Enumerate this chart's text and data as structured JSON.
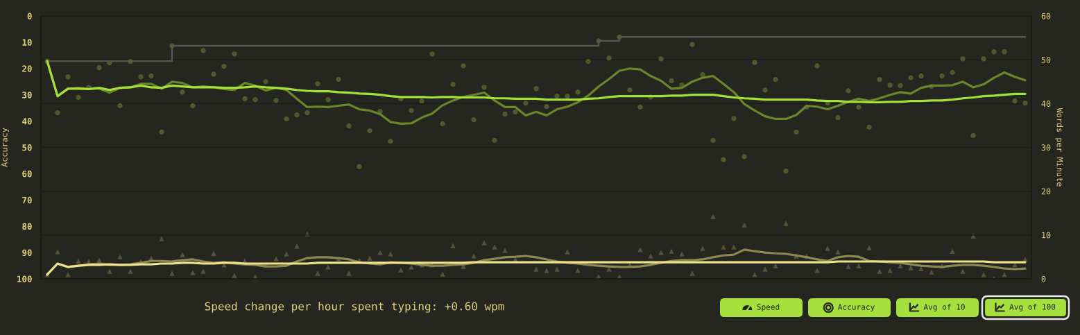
{
  "chart_data": {
    "type": "line",
    "categories": [
      null,
      null,
      null,
      null,
      null,
      null,
      null,
      null,
      null,
      null,
      null,
      null,
      null,
      null,
      null,
      null,
      null,
      null,
      null,
      null,
      null,
      null,
      null,
      null,
      null,
      null,
      null,
      null,
      null,
      null,
      null,
      null,
      null,
      null,
      null,
      null,
      null,
      null,
      null,
      null,
      null,
      null,
      null,
      null,
      null,
      null,
      null,
      null,
      null,
      null,
      null,
      null,
      null,
      null,
      null,
      null,
      null,
      null,
      null,
      null,
      null,
      null,
      null,
      null,
      null,
      null,
      null,
      null,
      null,
      null,
      null,
      null,
      null,
      null,
      null,
      null,
      null,
      null,
      null,
      null,
      null,
      null,
      null,
      null,
      null,
      null,
      null,
      null,
      null,
      null,
      null,
      null,
      null,
      null,
      null
    ],
    "ylabel": "Accuracy",
    "y2label": "Words per Minute",
    "ylim": [
      100,
      0
    ],
    "yticks": [
      0,
      10,
      20,
      30,
      40,
      50,
      60,
      70,
      80,
      90,
      100
    ],
    "y2lim": [
      0,
      60
    ],
    "y2ticks": [
      0,
      10,
      20,
      30,
      40,
      50,
      60
    ],
    "grid": "y",
    "series": [
      {
        "type": "scatter",
        "axis": "y2",
        "marker": "circle",
        "color": "#4c5b29",
        "values": [
          49.7,
          37.9,
          46.1,
          41.4,
          43.7,
          48.2,
          49.3,
          39.5,
          49.6,
          46.1,
          46.3,
          33.5,
          53.2,
          42.6,
          39.5,
          52.1,
          46.7,
          48.5,
          51.3,
          41.1,
          40.9,
          45.0,
          40.7,
          36.5,
          37.4,
          37.9,
          44.5,
          40.9,
          45.5,
          34.9,
          25.6,
          33.8,
          38.2,
          31.4,
          41.1,
          38.4,
          40.6,
          51.3,
          35.4,
          44.4,
          48.6,
          36.3,
          43.7,
          31.6,
          37.6,
          38.1,
          40.1,
          43.4,
          39.3,
          41.7,
          41.7,
          42.6,
          49.6,
          54.3,
          50.4,
          55.2,
          43.1,
          39.2,
          41.5,
          50.2,
          45.2,
          44.2,
          53.5,
          46.6,
          31.6,
          27.2,
          36.6,
          27.9,
          49.4,
          43.1,
          45.5,
          24.6,
          33.5,
          39.2,
          48.6,
          40.1,
          36.8,
          42.9,
          39.2,
          34.6,
          45.5,
          44.2,
          44.1,
          45.9,
          46.3,
          43.9,
          46.3,
          47.1,
          50.2,
          32.7,
          50.2,
          51.8,
          51.8,
          40.6,
          40.1
        ]
      },
      {
        "type": "scatter",
        "axis": "y",
        "marker": "triangle",
        "color": "#55523a",
        "values": [
          98.4,
          89.7,
          98.4,
          93.2,
          93.4,
          92.9,
          97.1,
          91.6,
          97.1,
          93.4,
          92.1,
          84.7,
          97.9,
          90.8,
          97.6,
          97.1,
          90.3,
          94.7,
          98.7,
          93.2,
          99.2,
          94.7,
          92.4,
          90.5,
          87.6,
          82.9,
          97.9,
          95.5,
          92.4,
          97.9,
          92.9,
          92.1,
          90.0,
          90.5,
          96.6,
          95.5,
          94.7,
          94.7,
          98.2,
          87.4,
          95.3,
          91.3,
          86.3,
          87.9,
          89.2,
          92.6,
          null,
          96.3,
          96.8,
          96.3,
          89.7,
          96.8,
          null,
          99.2,
          96.3,
          99.2,
          94.7,
          88.9,
          91.3,
          90.0,
          89.5,
          90.5,
          97.9,
          88.4,
          76.3,
          87.9,
          87.9,
          79.5,
          98.4,
          96.3,
          95.0,
          78.9,
          91.3,
          91.3,
          96.8,
          88.4,
          89.7,
          95.3,
          95.0,
          88.2,
          97.1,
          96.8,
          95.0,
          95.8,
          96.1,
          97.4,
          95.0,
          89.5,
          97.1,
          83.7,
          98.4,
          100,
          98.4,
          94.7,
          92.6
        ]
      },
      {
        "type": "step",
        "axis": "y2",
        "color": "#57574f",
        "values": [
          49.7,
          49.7,
          49.7,
          49.7,
          49.7,
          49.7,
          49.7,
          49.7,
          49.7,
          49.7,
          49.7,
          49.7,
          53.2,
          53.2,
          53.2,
          53.2,
          53.2,
          53.2,
          53.2,
          53.2,
          53.2,
          53.2,
          53.2,
          53.2,
          53.2,
          53.2,
          53.2,
          53.2,
          53.2,
          53.2,
          53.2,
          53.2,
          53.2,
          53.2,
          53.2,
          53.2,
          53.2,
          53.2,
          53.2,
          53.2,
          53.2,
          53.2,
          53.2,
          53.2,
          53.2,
          53.2,
          53.2,
          53.2,
          53.2,
          53.2,
          53.2,
          53.2,
          53.2,
          54.3,
          54.3,
          55.2,
          55.2,
          55.2,
          55.2,
          55.2,
          55.2,
          55.2,
          55.2,
          55.2,
          55.2,
          55.2,
          55.2,
          55.2,
          55.2,
          55.2,
          55.2,
          55.2,
          55.2,
          55.2,
          55.2,
          55.2,
          55.2,
          55.2,
          55.2,
          55.2,
          55.2,
          55.2,
          55.2,
          55.2,
          55.2,
          55.2,
          55.2,
          55.2,
          55.2,
          55.2,
          55.2,
          55.2,
          55.2,
          55.2,
          55.2
        ]
      },
      {
        "axis": "y",
        "color": "#8d8852",
        "values": [
          98.4,
          94.2,
          95.5,
          95.0,
          94.5,
          94.2,
          94.7,
          94.7,
          94.5,
          93.9,
          93.2,
          93.2,
          93.4,
          92.9,
          92.6,
          93.4,
          93.9,
          93.7,
          94.2,
          94.5,
          94.7,
          95.3,
          95.3,
          95.0,
          93.4,
          92.1,
          91.8,
          91.8,
          92.1,
          92.6,
          93.7,
          94.2,
          94.5,
          93.7,
          93.9,
          94.2,
          94.7,
          95.0,
          95.0,
          94.7,
          94.5,
          93.9,
          92.9,
          92.4,
          91.8,
          91.6,
          91.3,
          91.8,
          92.6,
          93.4,
          93.9,
          94.2,
          94.7,
          95.0,
          95.3,
          95.5,
          95.5,
          95.3,
          94.7,
          93.9,
          93.2,
          92.9,
          92.9,
          92.6,
          91.8,
          91.1,
          90.8,
          88.9,
          89.5,
          90.0,
          90.3,
          90.5,
          91.1,
          91.8,
          92.6,
          93.2,
          91.8,
          91.3,
          91.6,
          93.2,
          93.4,
          93.7,
          93.9,
          94.5,
          95.0,
          95.3,
          95.5,
          95.0,
          94.7,
          94.7,
          95.0,
          95.5,
          96.1,
          96.3,
          96.1
        ]
      },
      {
        "axis": "y2",
        "color": "#6a862b",
        "values": [
          49.7,
          41.7,
          43.4,
          43.6,
          43.4,
          43.4,
          42.5,
          43.6,
          43.7,
          44.5,
          44.5,
          43.4,
          45.0,
          44.7,
          43.7,
          43.9,
          43.7,
          43.3,
          43.1,
          44.7,
          44.1,
          43.0,
          43.6,
          43.1,
          41.1,
          39.2,
          39.3,
          39.2,
          39.5,
          39.8,
          38.7,
          38.4,
          37.6,
          35.8,
          35.4,
          35.5,
          36.8,
          37.7,
          39.6,
          40.7,
          41.5,
          42.0,
          42.5,
          40.7,
          39.2,
          39.2,
          37.3,
          38.1,
          37.3,
          38.7,
          39.3,
          40.3,
          41.8,
          43.9,
          45.6,
          47.5,
          48.0,
          47.8,
          46.3,
          45.2,
          43.4,
          43.6,
          45.0,
          45.9,
          46.3,
          44.5,
          42.6,
          39.9,
          38.4,
          37.1,
          36.5,
          36.5,
          37.4,
          39.5,
          39.3,
          38.7,
          39.5,
          40.4,
          41.1,
          40.6,
          41.2,
          42.0,
          42.6,
          42.3,
          43.6,
          44.1,
          44.1,
          44.2,
          45.0,
          43.7,
          44.4,
          45.9,
          47.1,
          46.1,
          45.3
        ]
      },
      {
        "axis": "y",
        "color": "#ece28a",
        "values": [
          98.4,
          94.2,
          95.5,
          95.0,
          94.7,
          94.7,
          94.5,
          94.7,
          94.7,
          94.5,
          94.5,
          94.2,
          94.2,
          93.9,
          93.9,
          94.2,
          94.2,
          93.9,
          93.9,
          94.2,
          94.2,
          94.2,
          94.2,
          94.2,
          94.2,
          94.2,
          93.9,
          93.9,
          93.9,
          93.9,
          93.9,
          93.9,
          93.9,
          93.9,
          93.9,
          93.9,
          93.9,
          93.9,
          93.9,
          93.9,
          93.9,
          93.7,
          93.7,
          93.7,
          93.7,
          93.7,
          93.7,
          93.7,
          93.7,
          93.7,
          93.7,
          93.7,
          93.7,
          93.7,
          93.7,
          93.7,
          93.7,
          93.7,
          93.7,
          93.7,
          93.7,
          93.7,
          93.7,
          93.7,
          93.7,
          93.7,
          93.7,
          93.7,
          93.7,
          93.7,
          93.7,
          93.7,
          93.7,
          93.7,
          93.7,
          93.7,
          93.4,
          93.4,
          93.4,
          93.4,
          93.4,
          93.4,
          93.4,
          93.4,
          93.4,
          93.4,
          93.4,
          93.4,
          93.4,
          93.4,
          93.4,
          93.7,
          93.7,
          93.7,
          93.7
        ]
      },
      {
        "axis": "y2",
        "color": "#a3e03a",
        "values": [
          49.7,
          41.7,
          43.4,
          43.4,
          43.3,
          43.6,
          43.1,
          43.6,
          43.7,
          44.1,
          43.7,
          43.6,
          44.1,
          43.9,
          43.7,
          43.7,
          43.7,
          43.6,
          43.6,
          43.7,
          43.9,
          43.7,
          43.6,
          43.4,
          43.1,
          42.9,
          42.8,
          42.8,
          42.6,
          42.5,
          42.3,
          42.2,
          42.0,
          41.7,
          41.5,
          41.5,
          41.5,
          41.4,
          41.5,
          41.5,
          41.4,
          41.4,
          41.4,
          41.2,
          41.2,
          41.1,
          41.1,
          41.1,
          40.9,
          40.9,
          40.9,
          40.9,
          41.1,
          41.2,
          41.5,
          41.7,
          41.7,
          41.7,
          41.7,
          41.7,
          41.8,
          41.8,
          42.0,
          42.0,
          42.0,
          41.7,
          41.4,
          41.2,
          41.1,
          40.9,
          40.9,
          40.9,
          40.9,
          40.9,
          40.7,
          40.6,
          40.6,
          40.4,
          40.4,
          40.3,
          40.3,
          40.4,
          40.4,
          40.6,
          40.6,
          40.7,
          40.7,
          40.9,
          41.2,
          41.4,
          41.7,
          41.8,
          42.0,
          42.2,
          42.2
        ]
      }
    ],
    "annotations": [
      "Speed change per hour spent typing: +0.60 wpm",
      "Speed",
      "Accuracy",
      "Avg of 10",
      "Avg of 100"
    ]
  }
}
